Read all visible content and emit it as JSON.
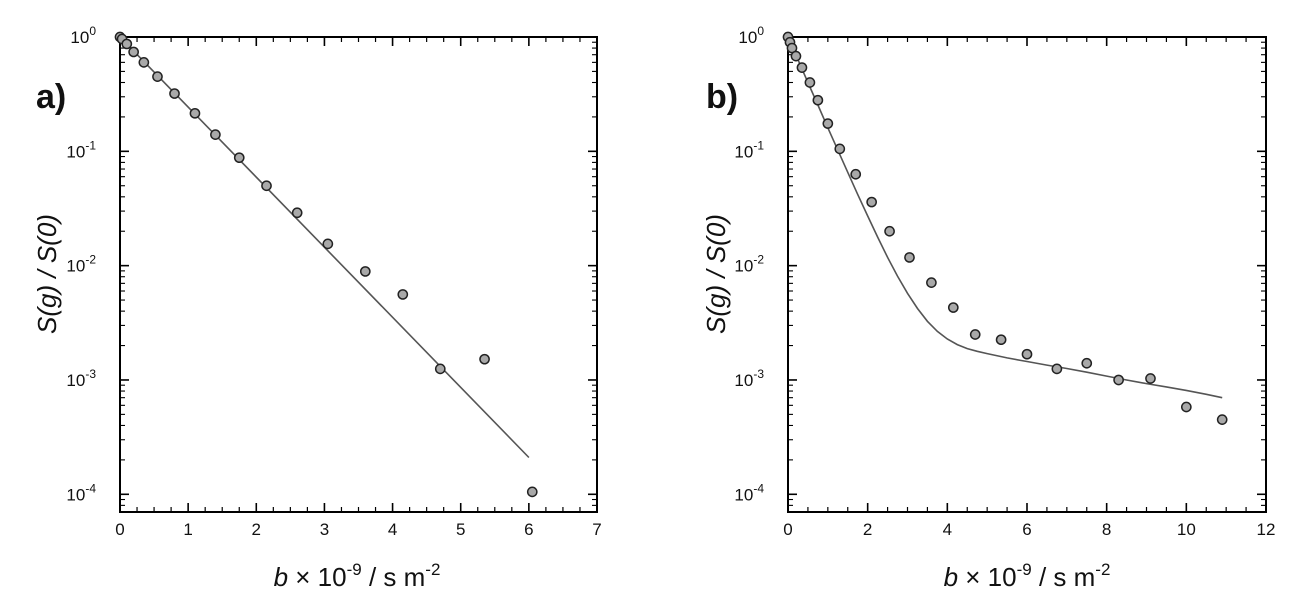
{
  "chart_data": [
    {
      "type": "scatter",
      "panel_label": "a)",
      "xlabel_parts": [
        "b",
        " × 10",
        "-9",
        " / s m",
        "-2"
      ],
      "ylabel": "S(g) / S(0)",
      "yscale": "log",
      "xlim": [
        0,
        7
      ],
      "ylim": [
        7e-05,
        1.0
      ],
      "xticks": [
        0,
        1,
        2,
        3,
        4,
        5,
        6,
        7
      ],
      "xtick_labels": [
        "0",
        "1",
        "2",
        "3",
        "4",
        "5",
        "6",
        "7"
      ],
      "yticks": [
        1,
        0.1,
        0.01,
        0.001,
        0.0001
      ],
      "ytick_labels": [
        {
          "base": "10",
          "exp": "0"
        },
        {
          "base": "10",
          "exp": "-1"
        },
        {
          "base": "10",
          "exp": "-2"
        },
        {
          "base": "10",
          "exp": "-3"
        },
        {
          "base": "10",
          "exp": "-4"
        }
      ],
      "grid": false,
      "series": [
        {
          "kind": "points",
          "x": [
            0.0,
            0.03,
            0.1,
            0.2,
            0.35,
            0.55,
            0.8,
            1.1,
            1.4,
            1.75,
            2.15,
            2.6,
            3.05,
            3.6,
            4.15,
            4.7,
            5.35,
            6.05
          ],
          "y": [
            1.0,
            0.96,
            0.87,
            0.74,
            0.6,
            0.45,
            0.32,
            0.215,
            0.14,
            0.088,
            0.05,
            0.029,
            0.0155,
            0.0089,
            0.0056,
            0.00125,
            0.00152,
            0.000105
          ]
        },
        {
          "kind": "line",
          "x": [
            0,
            6.0
          ],
          "y": [
            1.0,
            0.00021
          ]
        }
      ]
    },
    {
      "type": "scatter",
      "panel_label": "b)",
      "xlabel_parts": [
        "b",
        " × 10",
        "-9",
        " / s m",
        "-2"
      ],
      "ylabel": "S(g) / S(0)",
      "yscale": "log",
      "xlim": [
        0,
        12
      ],
      "ylim": [
        7e-05,
        1.0
      ],
      "xticks": [
        0,
        2,
        4,
        6,
        8,
        10,
        12
      ],
      "xtick_labels": [
        "0",
        "2",
        "4",
        "6",
        "8",
        "10",
        "12"
      ],
      "yticks": [
        1,
        0.1,
        0.01,
        0.001,
        0.0001
      ],
      "ytick_labels": [
        {
          "base": "10",
          "exp": "0"
        },
        {
          "base": "10",
          "exp": "-1"
        },
        {
          "base": "10",
          "exp": "-2"
        },
        {
          "base": "10",
          "exp": "-3"
        },
        {
          "base": "10",
          "exp": "-4"
        }
      ],
      "grid": false,
      "series": [
        {
          "kind": "points",
          "x": [
            0.0,
            0.05,
            0.1,
            0.2,
            0.35,
            0.55,
            0.75,
            1.0,
            1.3,
            1.7,
            2.1,
            2.55,
            3.05,
            3.6,
            4.15,
            4.7,
            5.35,
            6.0,
            6.75,
            7.5,
            8.3,
            9.1,
            10.0,
            10.9
          ],
          "y": [
            1.0,
            0.9,
            0.8,
            0.68,
            0.54,
            0.4,
            0.28,
            0.175,
            0.105,
            0.063,
            0.036,
            0.02,
            0.0118,
            0.0071,
            0.0043,
            0.0025,
            0.00225,
            0.00168,
            0.00125,
            0.0014,
            0.001,
            0.00103,
            0.00058,
            0.00045
          ]
        },
        {
          "kind": "line",
          "x": [
            0,
            0.25,
            0.5,
            0.75,
            1.0,
            1.25,
            1.5,
            1.75,
            2.0,
            2.25,
            2.5,
            2.75,
            3.0,
            3.25,
            3.5,
            3.75,
            4.0,
            4.25,
            4.5,
            4.75,
            5.0,
            5.5,
            6.0,
            6.5,
            7.0,
            7.5,
            8.0,
            8.5,
            9.0,
            9.5,
            10.0,
            10.5,
            10.9
          ],
          "y": [
            1.0,
            0.633,
            0.4,
            0.254,
            0.161,
            0.1025,
            0.0654,
            0.042,
            0.0272,
            0.0178,
            0.0118,
            0.0081,
            0.00573,
            0.00422,
            0.00326,
            0.00266,
            0.00228,
            0.00204,
            0.00188,
            0.00178,
            0.0017,
            0.00156,
            0.00145,
            0.00135,
            0.00126,
            0.00117,
            0.00108,
            0.001,
            0.00093,
            0.00087,
            0.00081,
            0.00075,
            0.0007
          ]
        }
      ]
    }
  ]
}
